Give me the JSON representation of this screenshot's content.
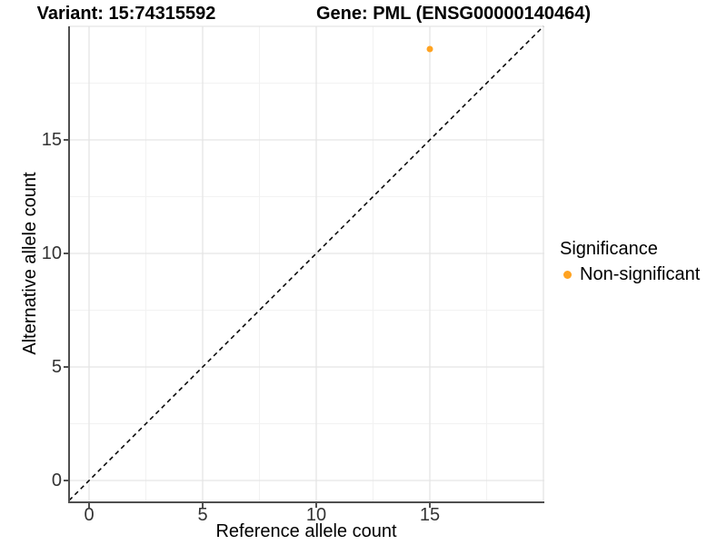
{
  "titles": {
    "variant": "Variant: 15:74315592",
    "gene": "Gene: PML (ENSG00000140464)"
  },
  "legend": {
    "title": "Significance",
    "items": [
      {
        "label": "Non-significant",
        "color": "#FFA321"
      }
    ]
  },
  "chart_data": {
    "type": "scatter",
    "title": "Variant: 15:74315592 | Gene: PML (ENSG00000140464)",
    "xlabel": "Reference allele count",
    "ylabel": "Alternative allele count",
    "xlim": [
      -0.95,
      19.95
    ],
    "ylim": [
      -0.95,
      19.95
    ],
    "xticks": [
      0,
      5,
      10,
      15
    ],
    "yticks": [
      0,
      5,
      10,
      15
    ],
    "grid": {
      "on": true,
      "major_x": [
        0,
        5,
        10,
        15,
        20
      ],
      "minor_x": [
        2.5,
        7.5,
        12.5,
        17.5
      ],
      "major_y": [
        0,
        5,
        10,
        15,
        20
      ],
      "minor_y": [
        2.5,
        7.5,
        12.5,
        17.5
      ]
    },
    "reference_line": {
      "style": "dashed",
      "slope": 1,
      "intercept": 0,
      "color": "#000000"
    },
    "series": [
      {
        "name": "Non-significant",
        "color": "#FFA321",
        "points": [
          {
            "x": 15,
            "y": 19
          }
        ]
      }
    ],
    "legend_position": "right",
    "legend_title": "Significance"
  },
  "colors": {
    "grid_major": "#e5e5e5",
    "grid_minor": "#f2f2f2",
    "axis_line": "#4f4f4f",
    "tick_label": "#333333",
    "point": "#FFA321",
    "background": "#ffffff"
  }
}
